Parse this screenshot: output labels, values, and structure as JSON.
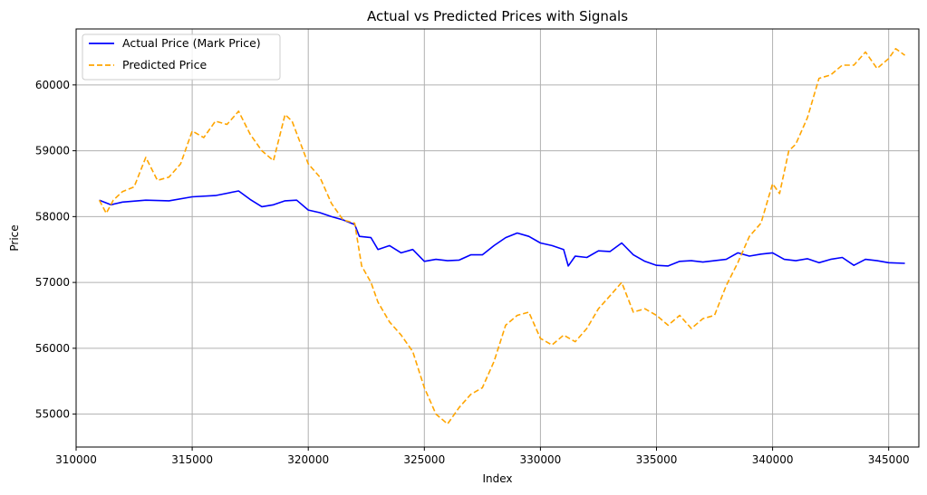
{
  "chart_data": {
    "type": "line",
    "title": "Actual vs Predicted Prices with Signals",
    "xlabel": "Index",
    "ylabel": "Price",
    "xlim": [
      310000,
      346300
    ],
    "ylim": [
      54500,
      60850
    ],
    "xticks": [
      310000,
      315000,
      320000,
      325000,
      330000,
      335000,
      340000,
      345000
    ],
    "yticks": [
      55000,
      56000,
      57000,
      58000,
      59000,
      60000
    ],
    "grid": true,
    "legend_position": "top-left",
    "series": [
      {
        "name": "Actual Price (Mark Price)",
        "color": "#0000ff",
        "style": "solid",
        "points": [
          [
            311000,
            58250
          ],
          [
            311500,
            58180
          ],
          [
            312000,
            58220
          ],
          [
            313000,
            58250
          ],
          [
            314000,
            58240
          ],
          [
            315000,
            58300
          ],
          [
            316000,
            58320
          ],
          [
            317000,
            58390
          ],
          [
            317500,
            58260
          ],
          [
            318000,
            58150
          ],
          [
            318500,
            58180
          ],
          [
            319000,
            58240
          ],
          [
            319500,
            58250
          ],
          [
            320000,
            58100
          ],
          [
            320500,
            58060
          ],
          [
            321000,
            58000
          ],
          [
            321500,
            57950
          ],
          [
            322000,
            57880
          ],
          [
            322200,
            57700
          ],
          [
            322700,
            57680
          ],
          [
            323000,
            57500
          ],
          [
            323500,
            57560
          ],
          [
            324000,
            57450
          ],
          [
            324500,
            57500
          ],
          [
            325000,
            57320
          ],
          [
            325500,
            57350
          ],
          [
            326000,
            57330
          ],
          [
            326500,
            57340
          ],
          [
            327000,
            57420
          ],
          [
            327500,
            57420
          ],
          [
            328000,
            57560
          ],
          [
            328500,
            57680
          ],
          [
            329000,
            57750
          ],
          [
            329500,
            57700
          ],
          [
            330000,
            57600
          ],
          [
            330500,
            57560
          ],
          [
            331000,
            57500
          ],
          [
            331200,
            57250
          ],
          [
            331500,
            57400
          ],
          [
            332000,
            57380
          ],
          [
            332500,
            57480
          ],
          [
            333000,
            57470
          ],
          [
            333500,
            57600
          ],
          [
            334000,
            57420
          ],
          [
            334500,
            57320
          ],
          [
            335000,
            57260
          ],
          [
            335500,
            57250
          ],
          [
            336000,
            57320
          ],
          [
            336500,
            57330
          ],
          [
            337000,
            57310
          ],
          [
            337500,
            57330
          ],
          [
            338000,
            57350
          ],
          [
            338500,
            57450
          ],
          [
            339000,
            57400
          ],
          [
            339500,
            57430
          ],
          [
            340000,
            57450
          ],
          [
            340500,
            57350
          ],
          [
            341000,
            57330
          ],
          [
            341500,
            57360
          ],
          [
            342000,
            57300
          ],
          [
            342500,
            57350
          ],
          [
            343000,
            57380
          ],
          [
            343500,
            57260
          ],
          [
            344000,
            57350
          ],
          [
            344500,
            57330
          ],
          [
            345000,
            57300
          ],
          [
            345700,
            57290
          ]
        ]
      },
      {
        "name": "Predicted Price",
        "color": "#ffa500",
        "style": "dashed",
        "points": [
          [
            311000,
            58250
          ],
          [
            311300,
            58050
          ],
          [
            311600,
            58250
          ],
          [
            312000,
            58380
          ],
          [
            312500,
            58450
          ],
          [
            313000,
            58900
          ],
          [
            313500,
            58550
          ],
          [
            314000,
            58600
          ],
          [
            314500,
            58800
          ],
          [
            315000,
            59300
          ],
          [
            315500,
            59200
          ],
          [
            316000,
            59450
          ],
          [
            316500,
            59400
          ],
          [
            317000,
            59600
          ],
          [
            317500,
            59250
          ],
          [
            318000,
            59000
          ],
          [
            318500,
            58850
          ],
          [
            319000,
            59550
          ],
          [
            319300,
            59450
          ],
          [
            320000,
            58800
          ],
          [
            320500,
            58600
          ],
          [
            321000,
            58200
          ],
          [
            321500,
            57950
          ],
          [
            322000,
            57900
          ],
          [
            322300,
            57250
          ],
          [
            322700,
            57000
          ],
          [
            323000,
            56700
          ],
          [
            323500,
            56400
          ],
          [
            324000,
            56200
          ],
          [
            324500,
            55950
          ],
          [
            325000,
            55400
          ],
          [
            325500,
            55000
          ],
          [
            326000,
            54850
          ],
          [
            326500,
            55100
          ],
          [
            327000,
            55300
          ],
          [
            327500,
            55400
          ],
          [
            328000,
            55800
          ],
          [
            328500,
            56350
          ],
          [
            329000,
            56500
          ],
          [
            329500,
            56550
          ],
          [
            330000,
            56150
          ],
          [
            330500,
            56050
          ],
          [
            331000,
            56200
          ],
          [
            331500,
            56100
          ],
          [
            332000,
            56300
          ],
          [
            332500,
            56600
          ],
          [
            333000,
            56800
          ],
          [
            333500,
            57000
          ],
          [
            334000,
            56550
          ],
          [
            334500,
            56600
          ],
          [
            335000,
            56500
          ],
          [
            335500,
            56350
          ],
          [
            336000,
            56500
          ],
          [
            336500,
            56300
          ],
          [
            337000,
            56450
          ],
          [
            337500,
            56500
          ],
          [
            338000,
            56950
          ],
          [
            338500,
            57300
          ],
          [
            339000,
            57700
          ],
          [
            339500,
            57900
          ],
          [
            340000,
            58500
          ],
          [
            340300,
            58350
          ],
          [
            340700,
            59000
          ],
          [
            341000,
            59100
          ],
          [
            341500,
            59500
          ],
          [
            342000,
            60100
          ],
          [
            342500,
            60150
          ],
          [
            343000,
            60300
          ],
          [
            343500,
            60300
          ],
          [
            344000,
            60500
          ],
          [
            344500,
            60250
          ],
          [
            345000,
            60400
          ],
          [
            345300,
            60550
          ],
          [
            345700,
            60450
          ]
        ]
      }
    ]
  }
}
